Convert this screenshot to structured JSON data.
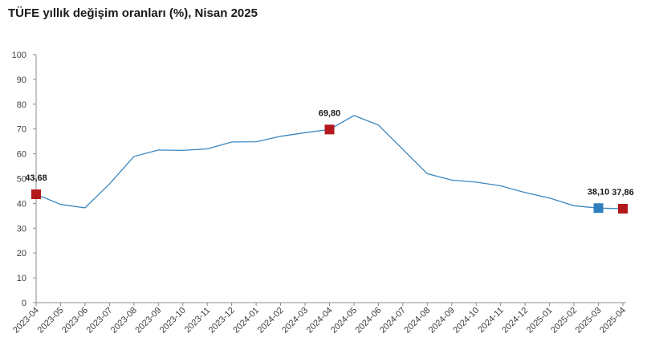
{
  "chart_data": {
    "type": "line",
    "title": "TÜFE yıllık değişim oranları (%), Nisan 2025",
    "xlabel": "",
    "ylabel": "",
    "ylim": [
      0,
      100
    ],
    "yticks": [
      "0",
      "10",
      "20",
      "30",
      "40",
      "50",
      "60",
      "70",
      "80",
      "90",
      "100"
    ],
    "grid": false,
    "categories": [
      "2023-04",
      "2023-05",
      "2023-06",
      "2023-07",
      "2023-08",
      "2023-09",
      "2023-10",
      "2023-11",
      "2023-12",
      "2024-01",
      "2024-02",
      "2024-03",
      "2024-04",
      "2024-05",
      "2024-06",
      "2024-07",
      "2024-08",
      "2024-09",
      "2024-10",
      "2024-11",
      "2024-12",
      "2025-01",
      "2025-02",
      "2025-03",
      "2025-04"
    ],
    "series": [
      {
        "values": [
          43.68,
          39.59,
          38.21,
          47.83,
          58.94,
          61.53,
          61.36,
          61.98,
          64.77,
          64.86,
          67.07,
          68.5,
          69.8,
          75.45,
          71.6,
          61.78,
          51.97,
          49.38,
          48.58,
          47.09,
          44.38,
          42.12,
          39.05,
          38.1,
          37.86
        ]
      }
    ],
    "annotations": [
      {
        "index": 0,
        "label": "43,68",
        "marker_color": "#b3191c"
      },
      {
        "index": 12,
        "label": "69,80",
        "marker_color": "#b3191c"
      },
      {
        "index": 23,
        "label": "38,10",
        "marker_color": "#2e7fbf"
      },
      {
        "index": 24,
        "label": "37,86",
        "marker_color": "#b3191c"
      }
    ],
    "line_color": "#3a87c0"
  }
}
